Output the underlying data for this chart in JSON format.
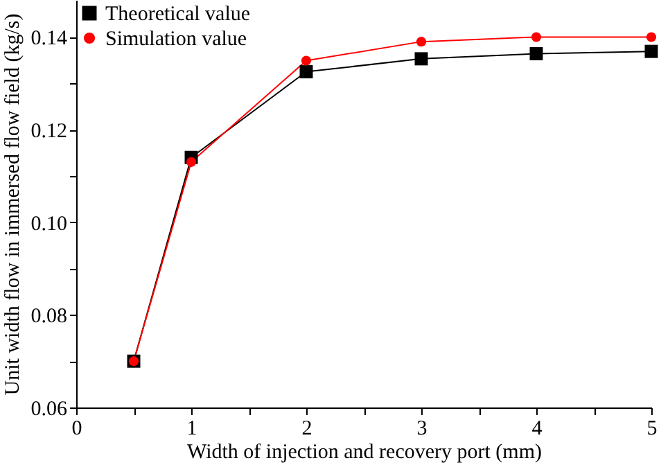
{
  "chart_data": {
    "type": "line",
    "xlabel": "Width of injection and recovery port  (mm)",
    "ylabel": "Unit width flow in immersed flow field  (kg/s)",
    "x": [
      0.5,
      1,
      2,
      3,
      4,
      5
    ],
    "series": [
      {
        "name": "Theoretical value",
        "color": "#000000",
        "marker": "square",
        "values": [
          0.07,
          0.114,
          0.1325,
          0.1353,
          0.1364,
          0.1369
        ]
      },
      {
        "name": "Simulation value",
        "color": "#ff0000",
        "marker": "circle",
        "values": [
          0.07,
          0.113,
          0.1349,
          0.139,
          0.14,
          0.14
        ]
      }
    ],
    "xlim": [
      0,
      5
    ],
    "xticks": [
      0,
      {
        "value": 0.5,
        "label": null
      },
      1,
      {
        "value": 1.5,
        "label": null
      },
      2,
      {
        "value": 2.5,
        "label": null
      },
      3,
      {
        "value": 3.5,
        "label": null
      },
      4,
      {
        "value": 4.5,
        "label": null
      },
      5
    ],
    "ylim": [
      0.06,
      0.148
    ],
    "yticks": [
      {
        "value": 0.06,
        "label": "0.06"
      },
      {
        "value": 0.07,
        "label": null
      },
      {
        "value": 0.08,
        "label": "0.08"
      },
      {
        "value": 0.09,
        "label": null
      },
      {
        "value": 0.1,
        "label": "0.10"
      },
      {
        "value": 0.11,
        "label": null
      },
      {
        "value": 0.12,
        "label": "0.12"
      },
      {
        "value": 0.13,
        "label": null
      },
      {
        "value": 0.14,
        "label": "0.14"
      }
    ],
    "legend": "top left",
    "grid": false,
    "line_style": "solid"
  }
}
